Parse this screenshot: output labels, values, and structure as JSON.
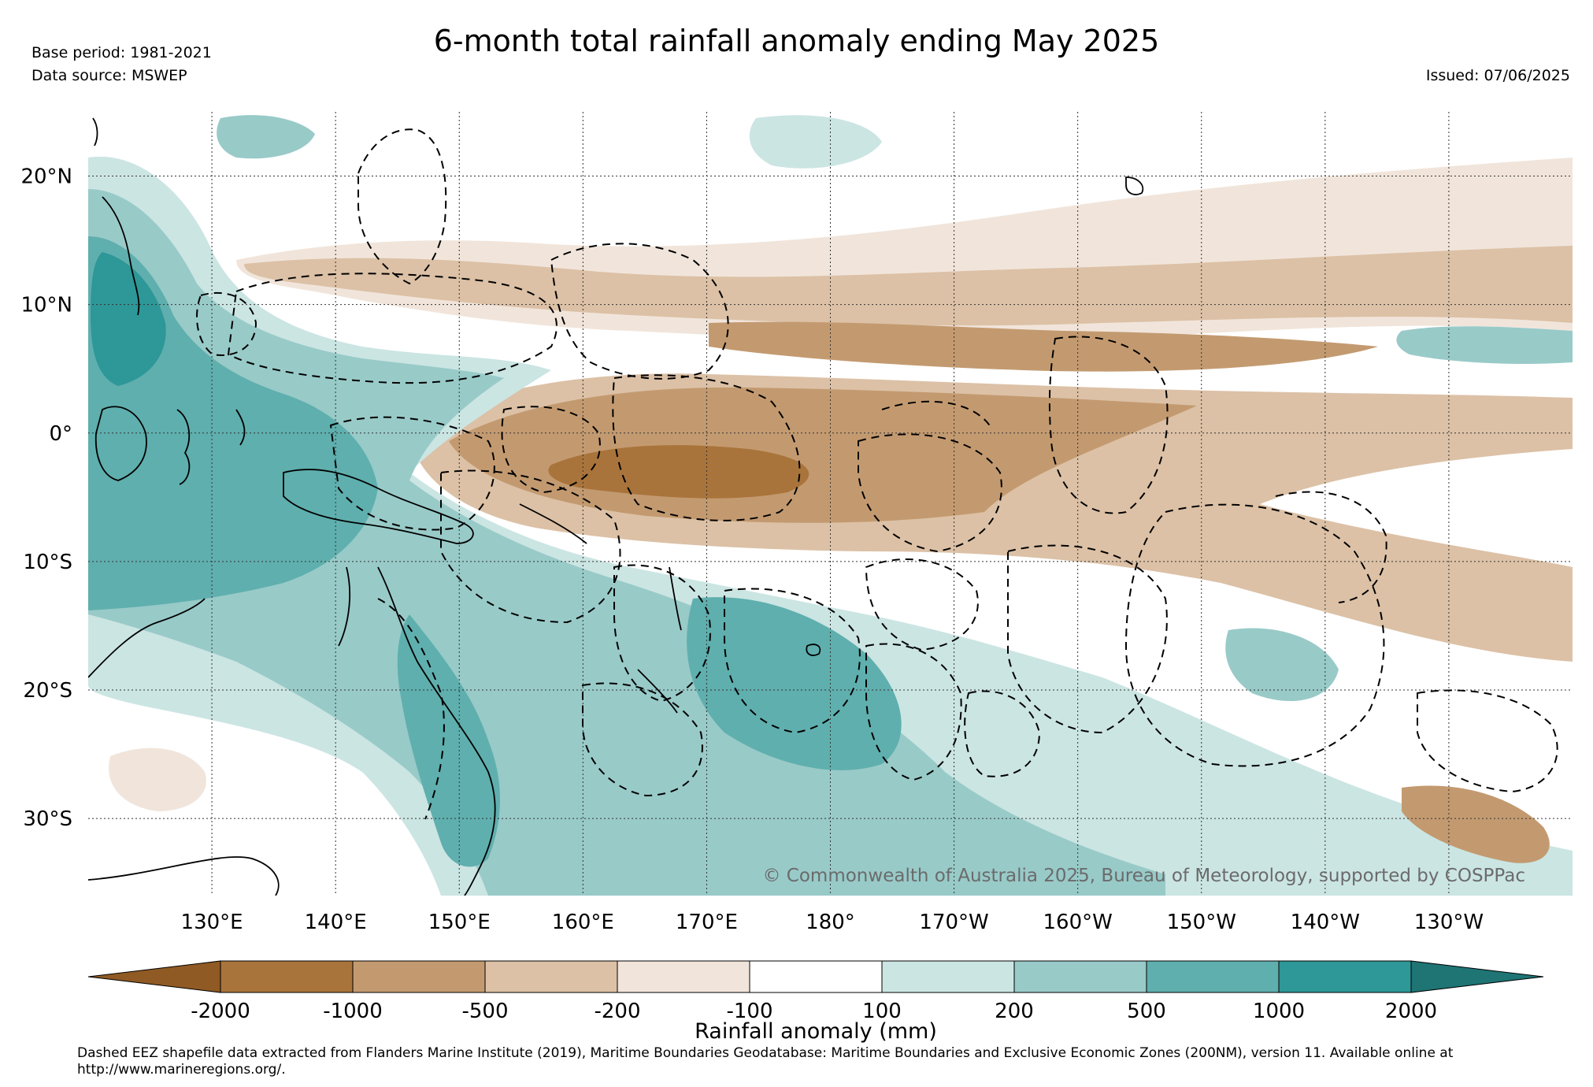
{
  "header": {
    "title": "6-month total rainfall anomaly ending May 2025",
    "base_period": "Base period: 1981-2021",
    "data_source": "Data source: MSWEP",
    "issued": "Issued: 07/06/2025"
  },
  "map": {
    "lat_range": [
      -36,
      25
    ],
    "lon_range": [
      120,
      240
    ],
    "lat_labels": [
      {
        "lat": 20,
        "label": "20°N"
      },
      {
        "lat": 10,
        "label": "10°N"
      },
      {
        "lat": 0,
        "label": "0°"
      },
      {
        "lat": -10,
        "label": "10°S"
      },
      {
        "lat": -20,
        "label": "20°S"
      },
      {
        "lat": -30,
        "label": "30°S"
      }
    ],
    "lon_labels": [
      {
        "lon": 130,
        "label": "130°E"
      },
      {
        "lon": 140,
        "label": "140°E"
      },
      {
        "lon": 150,
        "label": "150°E"
      },
      {
        "lon": 160,
        "label": "160°E"
      },
      {
        "lon": 170,
        "label": "170°E"
      },
      {
        "lon": 180,
        "label": "180°"
      },
      {
        "lon": 190,
        "label": "170°W"
      },
      {
        "lon": 200,
        "label": "160°W"
      },
      {
        "lon": 210,
        "label": "150°W"
      },
      {
        "lon": 220,
        "label": "140°W"
      },
      {
        "lon": 230,
        "label": "130°W"
      }
    ],
    "copyright": "© Commonwealth of Australia 2025, Bureau of Meteorology, supported by COSPPac"
  },
  "colorbar": {
    "label": "Rainfall anomaly (mm)",
    "tick_labels": [
      "-2000",
      "-1000",
      "-500",
      "-200",
      "-100",
      "100",
      "200",
      "500",
      "1000",
      "2000"
    ],
    "colors": [
      "#8f5a23",
      "#a9743b",
      "#c39a70",
      "#dcc1a6",
      "#f1e5db",
      "#ffffff",
      "#cbe5e3",
      "#98cac8",
      "#5fafae",
      "#2e9797",
      "#1f7474"
    ]
  },
  "footnote": "Dashed EEZ shapefile data extracted from Flanders Marine Institute (2019), Maritime Boundaries Geodatabase: Maritime Boundaries and Exclusive Economic Zones (200NM), version 11. Available online at http://www.marineregions.org/."
}
